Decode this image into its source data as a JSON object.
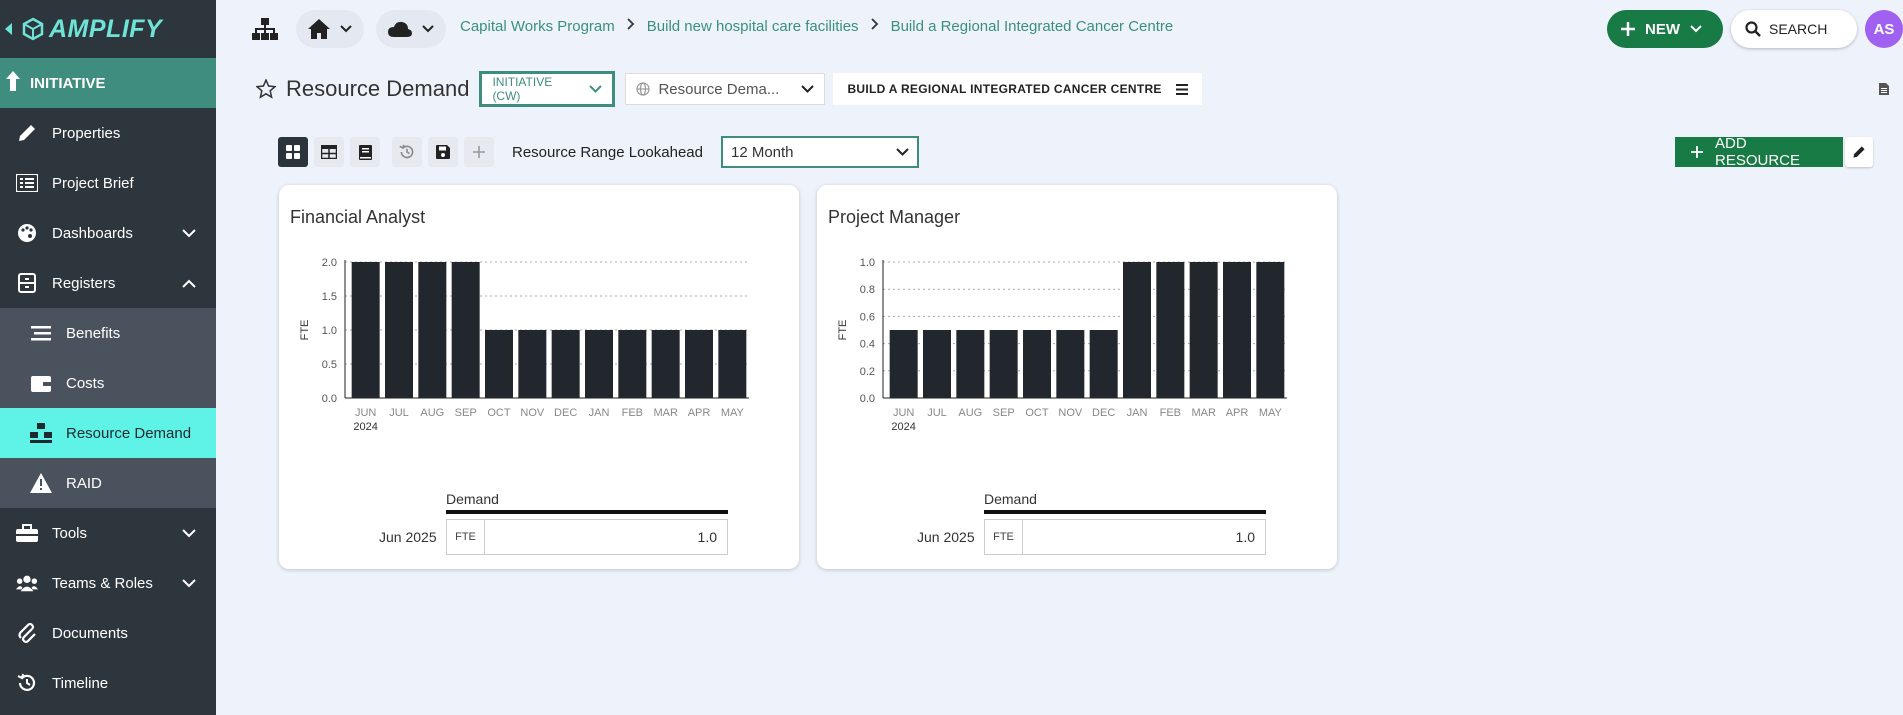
{
  "app": {
    "logo_text": "AMPLIFY"
  },
  "sidebar": {
    "initiative_label": "INITIATIVE",
    "items": [
      {
        "label": "Properties",
        "icon": "pencil-icon"
      },
      {
        "label": "Project Brief",
        "icon": "list-icon"
      },
      {
        "label": "Dashboards",
        "icon": "palette-icon",
        "expandable": true
      },
      {
        "label": "Registers",
        "icon": "register-icon",
        "expanded": true
      }
    ],
    "subitems": [
      {
        "label": "Benefits",
        "icon": "lines-icon"
      },
      {
        "label": "Costs",
        "icon": "wallet-icon"
      },
      {
        "label": "Resource Demand",
        "icon": "people-icon",
        "active": true
      },
      {
        "label": "RAID",
        "icon": "warning-icon"
      }
    ],
    "lower_items": [
      {
        "label": "Tools",
        "icon": "toolbox-icon",
        "expandable": true
      },
      {
        "label": "Teams & Roles",
        "icon": "users-icon",
        "expandable": true
      },
      {
        "label": "Documents",
        "icon": "paperclip-icon"
      },
      {
        "label": "Timeline",
        "icon": "history-icon"
      }
    ]
  },
  "breadcrumb": [
    "Capital Works Program",
    "Build new hospital care facilities",
    "Build a Regional Integrated Cancer Centre"
  ],
  "topbar": {
    "new_label": "NEW",
    "search_label": "SEARCH",
    "avatar_initials": "AS"
  },
  "page": {
    "title": "Resource Demand",
    "initiative_select": "INITIATIVE (CW)",
    "view_select": "Resource Dema...",
    "context_tag": "BUILD A REGIONAL INTEGRATED CANCER CENTRE"
  },
  "toolbar": {
    "lookahead_label": "Resource Range Lookahead",
    "lookahead_value": "12 Month",
    "add_resource_label": "ADD RESOURCE"
  },
  "cards": [
    {
      "title": "Financial Analyst",
      "legend": "Demand",
      "date": "Jun 2025",
      "unit": "FTE",
      "value": "1.0"
    },
    {
      "title": "Project Manager",
      "legend": "Demand",
      "date": "Jun 2025",
      "unit": "FTE",
      "value": "1.0"
    }
  ],
  "chart_data": [
    {
      "type": "bar",
      "title": "Financial Analyst",
      "ylabel": "FTE",
      "categories": [
        "JUN",
        "JUL",
        "AUG",
        "SEP",
        "OCT",
        "NOV",
        "DEC",
        "JAN",
        "FEB",
        "MAR",
        "APR",
        "MAY"
      ],
      "year_label": "2024",
      "yticks": [
        "0.0",
        "0.5",
        "1.0",
        "1.5",
        "2.0"
      ],
      "ylim": [
        0,
        2
      ],
      "series": [
        {
          "name": "Demand",
          "values": [
            2,
            2,
            2,
            2,
            1,
            1,
            1,
            1,
            1,
            1,
            1,
            1
          ]
        }
      ],
      "bar_color": "#22272d"
    },
    {
      "type": "bar",
      "title": "Project Manager",
      "ylabel": "FTE",
      "categories": [
        "JUN",
        "JUL",
        "AUG",
        "SEP",
        "OCT",
        "NOV",
        "DEC",
        "JAN",
        "FEB",
        "MAR",
        "APR",
        "MAY"
      ],
      "year_label": "2024",
      "yticks": [
        "0.0",
        "0.2",
        "0.4",
        "0.6",
        "0.8",
        "1.0"
      ],
      "ylim": [
        0,
        1
      ],
      "series": [
        {
          "name": "Demand",
          "values": [
            0.5,
            0.5,
            0.5,
            0.5,
            0.5,
            0.5,
            0.5,
            1,
            1,
            1,
            1,
            1
          ]
        }
      ],
      "bar_color": "#22272d"
    }
  ]
}
